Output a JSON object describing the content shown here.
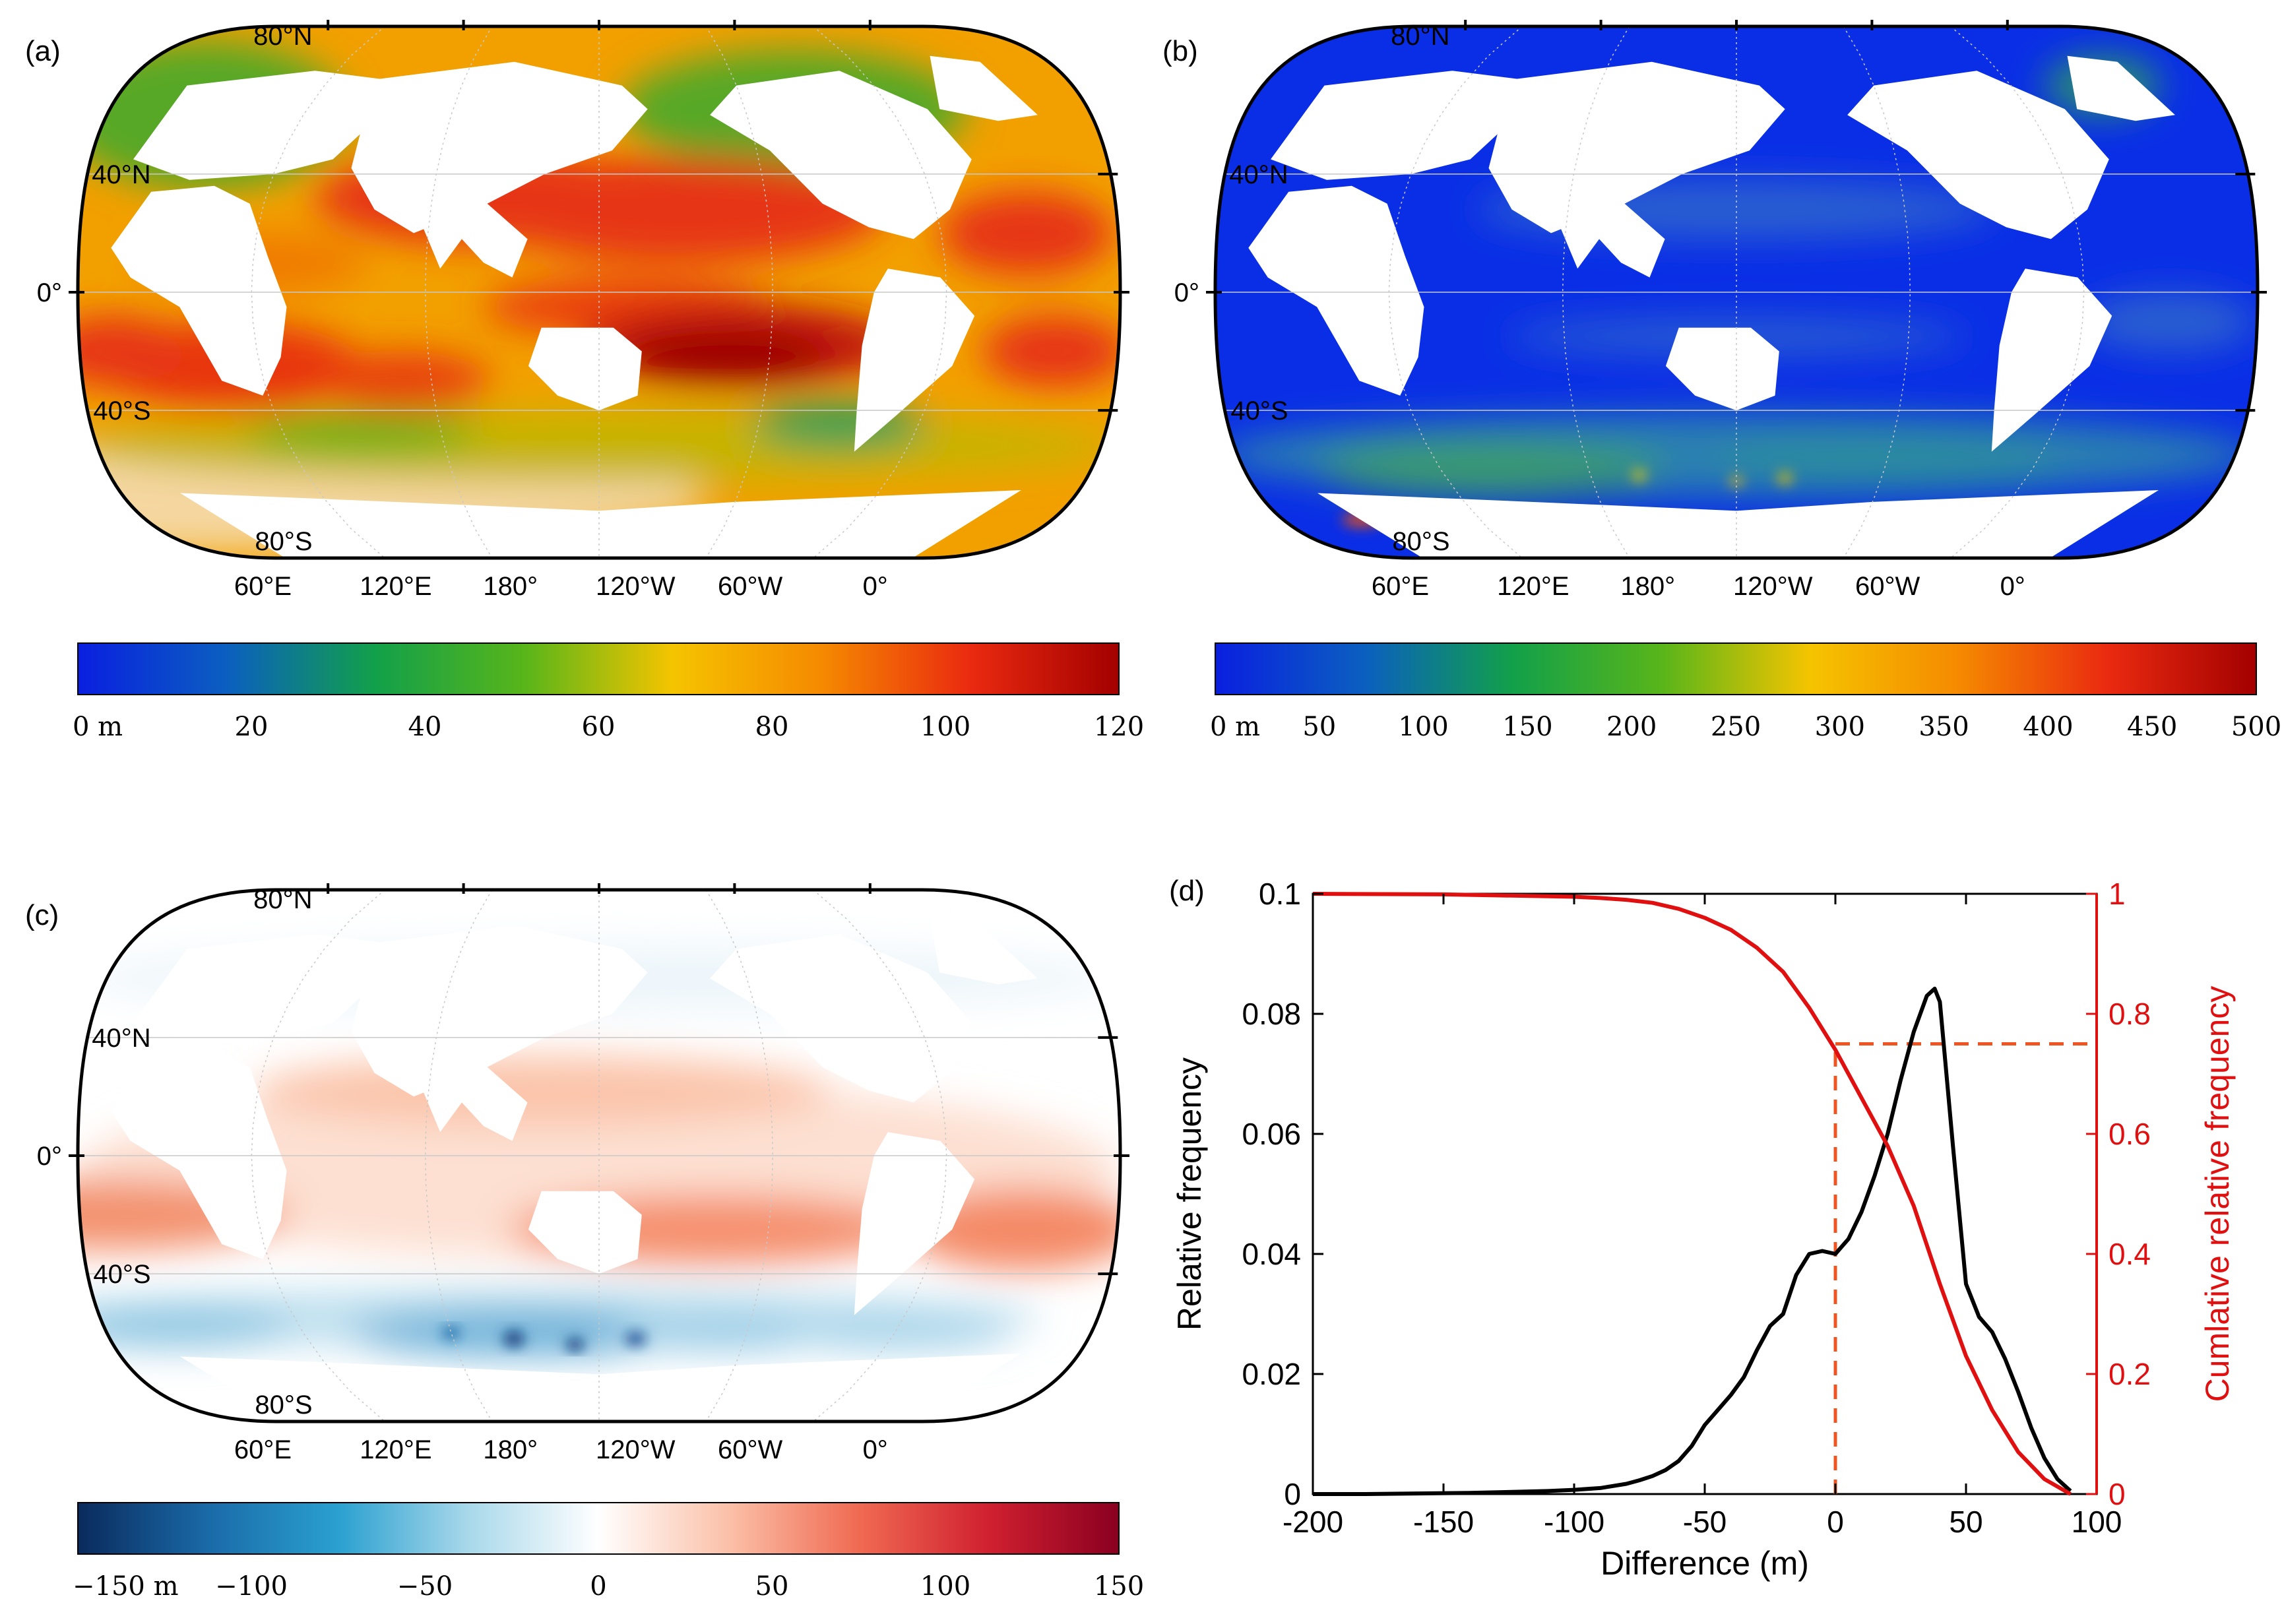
{
  "panels": {
    "a": {
      "label": "(a)",
      "lat_labels": [
        "80°N",
        "40°N",
        "0°",
        "40°S",
        "80°S"
      ],
      "lon_labels": [
        "60°E",
        "120°E",
        "180°",
        "120°W",
        "60°W",
        "0°"
      ],
      "colorbar": {
        "ticks": [
          "0 m",
          "20",
          "40",
          "60",
          "80",
          "100",
          "120"
        ],
        "min": 0,
        "max": 120,
        "colors": [
          "#0a1fe0",
          "#0b5fc0",
          "#12a04a",
          "#58b51a",
          "#f5c400",
          "#f58a00",
          "#ea2a10",
          "#a30000"
        ]
      }
    },
    "b": {
      "label": "(b)",
      "lat_labels": [
        "80°N",
        "40°N",
        "0°",
        "40°S",
        "80°S"
      ],
      "lon_labels": [
        "60°E",
        "120°E",
        "180°",
        "120°W",
        "60°W",
        "0°"
      ],
      "colorbar": {
        "ticks": [
          "0 m",
          "50",
          "100",
          "150",
          "200",
          "250",
          "300",
          "350",
          "400",
          "450",
          "500"
        ],
        "min": 0,
        "max": 500,
        "colors": [
          "#0a1fe0",
          "#0b5fc0",
          "#12a04a",
          "#58b51a",
          "#f5c400",
          "#f58a00",
          "#ea2a10",
          "#a30000"
        ]
      }
    },
    "c": {
      "label": "(c)",
      "lat_labels": [
        "80°N",
        "40°N",
        "0°",
        "40°S",
        "80°S"
      ],
      "lon_labels": [
        "60°E",
        "120°E",
        "180°",
        "120°W",
        "60°W",
        "0°"
      ],
      "colorbar": {
        "ticks": [
          "−150 m",
          "−100",
          "−50",
          "0",
          "50",
          "100",
          "150"
        ],
        "min": -150,
        "max": 150,
        "colors": [
          "#0a2a5c",
          "#1a6aa8",
          "#2aa0d0",
          "#a8d8ea",
          "#ffffff",
          "#fbc0a8",
          "#f06a52",
          "#d02030",
          "#8a0020"
        ]
      }
    },
    "d": {
      "label": "(d)"
    }
  },
  "chart_data": {
    "type": "line",
    "xlabel": "Difference (m)",
    "ylabel": "Relative frequency",
    "y2label": "Cumlative relative frequency",
    "xlim": [
      -200,
      100
    ],
    "ylim": [
      0,
      0.1
    ],
    "y2lim": [
      0,
      1
    ],
    "xticks": [
      "-200",
      "-150",
      "-100",
      "-50",
      "0",
      "50",
      "100"
    ],
    "yticks": [
      "0",
      "0.02",
      "0.04",
      "0.06",
      "0.08",
      "0.1"
    ],
    "y2ticks": [
      "0",
      "0.2",
      "0.4",
      "0.6",
      "0.8",
      "1"
    ],
    "series": [
      {
        "axis": "left",
        "color": "#000000",
        "x": [
          -200,
          -180,
          -160,
          -140,
          -120,
          -110,
          -100,
          -90,
          -80,
          -75,
          -70,
          -65,
          -60,
          -55,
          -50,
          -45,
          -40,
          -35,
          -30,
          -25,
          -20,
          -15,
          -10,
          -5,
          0,
          5,
          10,
          15,
          20,
          25,
          30,
          35,
          38,
          40,
          45,
          50,
          55,
          60,
          65,
          70,
          75,
          80,
          85,
          90
        ],
        "y": [
          0,
          0,
          0.0001,
          0.0002,
          0.0004,
          0.0005,
          0.0007,
          0.001,
          0.0017,
          0.0023,
          0.003,
          0.004,
          0.0055,
          0.008,
          0.0115,
          0.014,
          0.0165,
          0.0195,
          0.024,
          0.028,
          0.03,
          0.0365,
          0.04,
          0.0405,
          0.04,
          0.0425,
          0.047,
          0.053,
          0.06,
          0.069,
          0.077,
          0.083,
          0.0842,
          0.082,
          0.058,
          0.035,
          0.0295,
          0.027,
          0.0225,
          0.017,
          0.011,
          0.006,
          0.0025,
          0.0005
        ]
      },
      {
        "axis": "right",
        "color": "#e01010",
        "x": [
          -200,
          -150,
          -100,
          -90,
          -80,
          -70,
          -60,
          -50,
          -40,
          -30,
          -20,
          -10,
          0,
          10,
          20,
          30,
          40,
          50,
          60,
          70,
          80,
          90
        ],
        "y": [
          1,
          0.999,
          0.995,
          0.993,
          0.99,
          0.985,
          0.975,
          0.96,
          0.94,
          0.91,
          0.87,
          0.81,
          0.74,
          0.66,
          0.58,
          0.48,
          0.35,
          0.23,
          0.14,
          0.07,
          0.025,
          0
        ]
      }
    ],
    "reference_lines": [
      {
        "type": "vertical",
        "x": 0,
        "y2_from": 0,
        "y2_to": 0.75,
        "color": "#ee5522",
        "dash": true
      },
      {
        "type": "horizontal",
        "y2": 0.75,
        "x_from": 0,
        "x_to": 100,
        "color": "#ee5522",
        "dash": true
      }
    ]
  }
}
